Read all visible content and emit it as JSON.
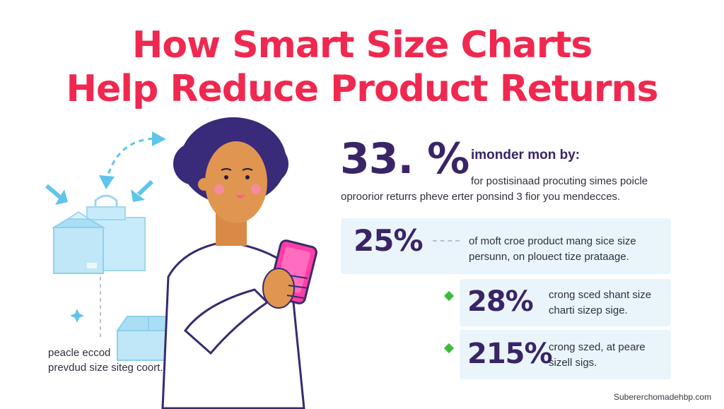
{
  "title": {
    "line1": "How Smart Size Charts",
    "line2": "Help Reduce Product Returns"
  },
  "illustration": {
    "caption_line1": "peacle eccod",
    "caption_line2": "prevdud size siteg coort."
  },
  "stats": {
    "stat1": {
      "value": "33. %",
      "heading": "imonder mon by:",
      "line1": "for postisinaad procuting simes poicle",
      "line2": "oproorior returrs pheve erter ponsind 3 fior you mendecces."
    },
    "stat2": {
      "value": "25%",
      "line1": "of moft croe product mang sice size",
      "line2": "persunn, on plouect tize prataage."
    },
    "stat3": {
      "value": "28%",
      "line1": "crong sced shant size",
      "line2": "charti sizep sige."
    },
    "stat4": {
      "value": "215%",
      "line1": "crong szed, at peare",
      "line2": "sizell sigs."
    }
  },
  "footer": {
    "watermark": "Subererchomadehbp.com"
  },
  "colors": {
    "title": "#f0284f",
    "stat": "#3a2468",
    "panel": "#eaf5fb",
    "accent_blue": "#5fc4ec",
    "phone": "#ff3ea5",
    "bullet": "#3dbb3a"
  }
}
